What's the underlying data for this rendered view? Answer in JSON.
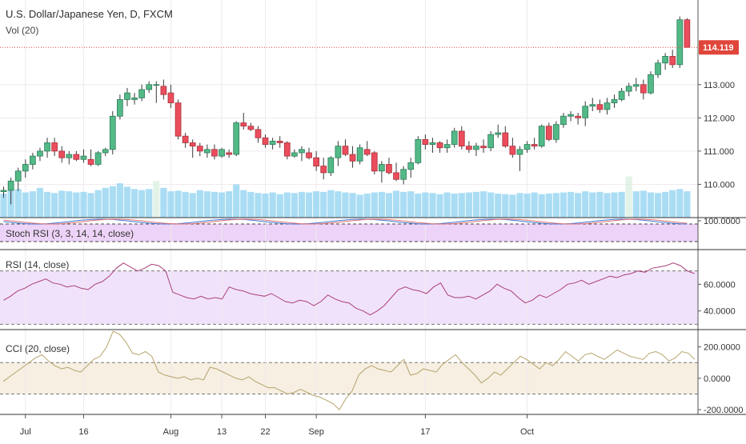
{
  "title": "U.S. Dollar/Japanese Yen, D, FXCM",
  "colors": {
    "up": "#53b987",
    "up_border": "#2e7d5a",
    "down": "#eb4d5c",
    "down_border": "#a8323e",
    "volume": "#8ed1f0",
    "volume_spike": "#d9efe0",
    "grid": "#efe9ef",
    "price_line": "#e0453a",
    "stoch_band": "#e8c8f5",
    "rsi_band": "#f1e2fb",
    "cci_band": "#f6efe2",
    "rsi_line": "#a8407a",
    "cci_line": "#b7a36b",
    "stoch_k": "#3b76d8",
    "stoch_d": "#e07070"
  },
  "chart_data": [
    {
      "type": "candlestick",
      "title": "U.S. Dollar/Japanese Yen, D, FXCM",
      "ylim": [
        109.0,
        115.4
      ],
      "y_ticks": [
        "113.000",
        "112.000",
        "111.000",
        "110.000"
      ],
      "last_price": "114.119",
      "x_ticks": [
        "Jul",
        "16",
        "Aug",
        "13",
        "22",
        "Sep",
        "17",
        "Oct"
      ],
      "candles": [
        [
          109.78,
          109.93,
          109.6,
          109.82
        ],
        [
          109.82,
          110.2,
          109.4,
          110.1
        ],
        [
          110.1,
          110.5,
          109.8,
          110.4
        ],
        [
          110.4,
          110.75,
          110.2,
          110.6
        ],
        [
          110.6,
          110.95,
          110.45,
          110.85
        ],
        [
          110.85,
          111.1,
          110.7,
          111.0
        ],
        [
          111.0,
          111.4,
          110.8,
          111.25
        ],
        [
          111.25,
          111.4,
          110.85,
          111.0
        ],
        [
          111.0,
          111.15,
          110.65,
          110.8
        ],
        [
          110.8,
          111.0,
          110.6,
          110.9
        ],
        [
          110.9,
          111.0,
          110.7,
          110.75
        ],
        [
          110.75,
          111.05,
          110.65,
          110.85
        ],
        [
          110.75,
          111.05,
          110.55,
          110.6
        ],
        [
          110.6,
          111.0,
          110.55,
          110.95
        ],
        [
          110.95,
          111.1,
          110.85,
          111.05
        ],
        [
          111.05,
          112.2,
          110.9,
          112.05
        ],
        [
          112.05,
          112.7,
          111.95,
          112.55
        ],
        [
          112.55,
          112.9,
          112.35,
          112.75
        ],
        [
          112.55,
          112.75,
          112.4,
          112.6
        ],
        [
          112.6,
          113.0,
          112.5,
          112.85
        ],
        [
          112.85,
          113.1,
          112.75,
          113.0
        ],
        [
          113.0,
          113.1,
          112.45,
          113.0
        ],
        [
          112.95,
          113.15,
          112.55,
          112.7
        ],
        [
          112.75,
          113.0,
          112.3,
          112.45
        ],
        [
          112.45,
          112.55,
          111.35,
          111.45
        ],
        [
          111.45,
          111.55,
          111.1,
          111.25
        ],
        [
          111.25,
          111.35,
          110.8,
          111.15
        ],
        [
          111.15,
          111.25,
          110.85,
          111.0
        ],
        [
          110.95,
          111.2,
          110.8,
          111.05
        ],
        [
          111.05,
          111.2,
          110.75,
          110.85
        ],
        [
          110.85,
          111.1,
          110.8,
          111.05
        ],
        [
          110.95,
          111.05,
          110.8,
          110.9
        ],
        [
          110.9,
          111.9,
          110.85,
          111.85
        ],
        [
          111.85,
          112.15,
          111.65,
          111.75
        ],
        [
          111.75,
          111.85,
          111.6,
          111.65
        ],
        [
          111.65,
          111.75,
          111.25,
          111.4
        ],
        [
          111.4,
          111.5,
          111.1,
          111.2
        ],
        [
          111.2,
          111.4,
          111.05,
          111.3
        ],
        [
          111.3,
          111.45,
          111.1,
          111.25
        ],
        [
          111.25,
          111.3,
          110.75,
          110.85
        ],
        [
          110.85,
          111.05,
          110.8,
          110.95
        ],
        [
          110.95,
          111.15,
          110.7,
          111.05
        ],
        [
          110.95,
          111.1,
          110.75,
          110.8
        ],
        [
          110.8,
          111.0,
          110.4,
          110.55
        ],
        [
          110.55,
          110.8,
          110.15,
          110.35
        ],
        [
          110.35,
          110.85,
          110.25,
          110.8
        ],
        [
          110.8,
          111.3,
          110.55,
          111.15
        ],
        [
          111.15,
          111.35,
          110.85,
          110.9
        ],
        [
          110.9,
          111.15,
          110.5,
          110.7
        ],
        [
          110.7,
          111.2,
          110.6,
          111.1
        ],
        [
          111.05,
          111.3,
          110.85,
          110.9
        ],
        [
          110.95,
          111.0,
          110.3,
          110.4
        ],
        [
          110.4,
          110.7,
          110.05,
          110.6
        ],
        [
          110.6,
          110.8,
          110.3,
          110.35
        ],
        [
          110.35,
          110.65,
          110.1,
          110.15
        ],
        [
          110.15,
          110.55,
          110.0,
          110.45
        ],
        [
          110.45,
          110.8,
          110.2,
          110.65
        ],
        [
          110.65,
          111.45,
          110.6,
          111.35
        ],
        [
          111.35,
          111.5,
          111.05,
          111.2
        ],
        [
          111.2,
          111.4,
          110.95,
          111.25
        ],
        [
          111.25,
          111.3,
          110.95,
          111.1
        ],
        [
          111.1,
          111.35,
          110.95,
          111.2
        ],
        [
          111.2,
          111.7,
          111.1,
          111.6
        ],
        [
          111.6,
          111.75,
          111.05,
          111.15
        ],
        [
          111.15,
          111.3,
          110.95,
          111.05
        ],
        [
          111.05,
          111.25,
          110.85,
          111.15
        ],
        [
          111.15,
          111.35,
          110.95,
          111.1
        ],
        [
          111.1,
          111.6,
          111.0,
          111.5
        ],
        [
          111.5,
          111.8,
          111.4,
          111.55
        ],
        [
          111.55,
          111.75,
          111.1,
          111.15
        ],
        [
          111.15,
          111.4,
          110.8,
          110.9
        ],
        [
          110.9,
          111.15,
          110.4,
          111.05
        ],
        [
          111.05,
          111.3,
          110.95,
          111.2
        ],
        [
          111.2,
          111.4,
          111.05,
          111.15
        ],
        [
          111.15,
          111.8,
          111.1,
          111.75
        ],
        [
          111.75,
          111.85,
          111.3,
          111.35
        ],
        [
          111.35,
          111.9,
          111.25,
          111.8
        ],
        [
          111.8,
          112.15,
          111.7,
          112.05
        ],
        [
          112.05,
          112.2,
          111.9,
          112.1
        ],
        [
          112.05,
          112.15,
          111.8,
          112.0
        ],
        [
          112.0,
          112.5,
          111.75,
          112.35
        ],
        [
          112.35,
          112.6,
          112.2,
          112.4
        ],
        [
          112.4,
          112.55,
          112.15,
          112.25
        ],
        [
          112.25,
          112.6,
          112.1,
          112.45
        ],
        [
          112.45,
          112.7,
          112.3,
          112.55
        ],
        [
          112.55,
          112.9,
          112.5,
          112.8
        ],
        [
          112.8,
          113.05,
          112.65,
          112.95
        ],
        [
          112.95,
          113.2,
          112.8,
          113.0
        ],
        [
          113.0,
          113.15,
          112.55,
          112.75
        ],
        [
          112.75,
          113.4,
          112.7,
          113.3
        ],
        [
          113.3,
          113.75,
          113.2,
          113.65
        ],
        [
          113.65,
          113.95,
          113.45,
          113.85
        ],
        [
          113.85,
          114.05,
          113.5,
          113.6
        ],
        [
          113.6,
          115.05,
          113.5,
          114.95
        ],
        [
          114.95,
          115.0,
          114.15,
          114.12
        ]
      ],
      "volume": [
        0.42,
        0.48,
        0.5,
        0.44,
        0.46,
        0.52,
        0.45,
        0.43,
        0.47,
        0.46,
        0.44,
        0.45,
        0.43,
        0.48,
        0.52,
        0.55,
        0.6,
        0.54,
        0.5,
        0.48,
        0.5,
        0.64,
        0.52,
        0.46,
        0.47,
        0.45,
        0.43,
        0.48,
        0.46,
        0.45,
        0.44,
        0.46,
        0.58,
        0.48,
        0.45,
        0.43,
        0.42,
        0.44,
        0.41,
        0.44,
        0.43,
        0.45,
        0.44,
        0.46,
        0.45,
        0.48,
        0.46,
        0.44,
        0.43,
        0.4,
        0.42,
        0.44,
        0.45,
        0.43,
        0.47,
        0.45,
        0.46,
        0.42,
        0.44,
        0.43,
        0.41,
        0.44,
        0.42,
        0.43,
        0.44,
        0.45,
        0.46,
        0.44,
        0.42,
        0.41,
        0.4,
        0.43,
        0.42,
        0.44,
        0.41,
        0.42,
        0.43,
        0.44,
        0.45,
        0.43,
        0.46,
        0.44,
        0.45,
        0.43,
        0.44,
        0.45,
        0.72,
        0.46,
        0.47,
        0.44,
        0.43,
        0.45,
        0.48,
        0.5,
        0.46
      ],
      "volume_label": "Vol (20)"
    },
    {
      "type": "line",
      "label": "Stoch RSI (3, 3, 14, 14, close)",
      "y_ticks": [
        "100.0000"
      ]
    },
    {
      "type": "line",
      "label": "RSI (14, close)",
      "ylim": [
        26,
        86
      ],
      "bands": [
        30,
        70
      ],
      "y_ticks": [
        "60.0000",
        "40.0000"
      ],
      "values": [
        48,
        51,
        55,
        57,
        60,
        62,
        64,
        61,
        60,
        58,
        59,
        57,
        56,
        60,
        62,
        66,
        72,
        76,
        73,
        70,
        72,
        75,
        74,
        70,
        54,
        52,
        50,
        49,
        51,
        49,
        50,
        49,
        58,
        56,
        55,
        53,
        52,
        51,
        53,
        50,
        47,
        46,
        48,
        47,
        44,
        47,
        52,
        49,
        47,
        46,
        42,
        40,
        37,
        40,
        44,
        50,
        56,
        58,
        56,
        55,
        53,
        58,
        61,
        52,
        50,
        50,
        51,
        49,
        52,
        55,
        60,
        57,
        55,
        50,
        46,
        48,
        52,
        50,
        53,
        56,
        60,
        61,
        63,
        60,
        62,
        64,
        66,
        65,
        67,
        68,
        70,
        69,
        72,
        73,
        74,
        76,
        74,
        70,
        68
      ]
    },
    {
      "type": "line",
      "label": "CCI (20, close)",
      "ylim": [
        -230,
        310
      ],
      "bands": [
        100,
        -100
      ],
      "y_ticks": [
        "200.0000",
        "0.0000",
        "-200.0000"
      ],
      "values": [
        -20,
        10,
        40,
        70,
        100,
        130,
        150,
        110,
        80,
        60,
        70,
        50,
        40,
        80,
        120,
        140,
        200,
        300,
        280,
        230,
        160,
        150,
        170,
        140,
        40,
        20,
        10,
        0,
        10,
        -10,
        0,
        -10,
        70,
        60,
        40,
        20,
        0,
        -10,
        10,
        -20,
        -40,
        -60,
        -60,
        -80,
        -100,
        -90,
        -70,
        -90,
        -110,
        -120,
        -140,
        -160,
        -200,
        -130,
        -80,
        20,
        60,
        80,
        60,
        50,
        40,
        80,
        120,
        20,
        30,
        60,
        50,
        40,
        90,
        120,
        150,
        100,
        60,
        20,
        -30,
        0,
        40,
        20,
        60,
        100,
        140,
        120,
        90,
        60,
        100,
        80,
        120,
        170,
        140,
        110,
        150,
        160,
        140,
        120,
        150,
        180,
        160,
        140,
        130,
        120,
        160,
        170,
        150,
        110,
        130,
        170,
        160,
        120
      ]
    }
  ]
}
